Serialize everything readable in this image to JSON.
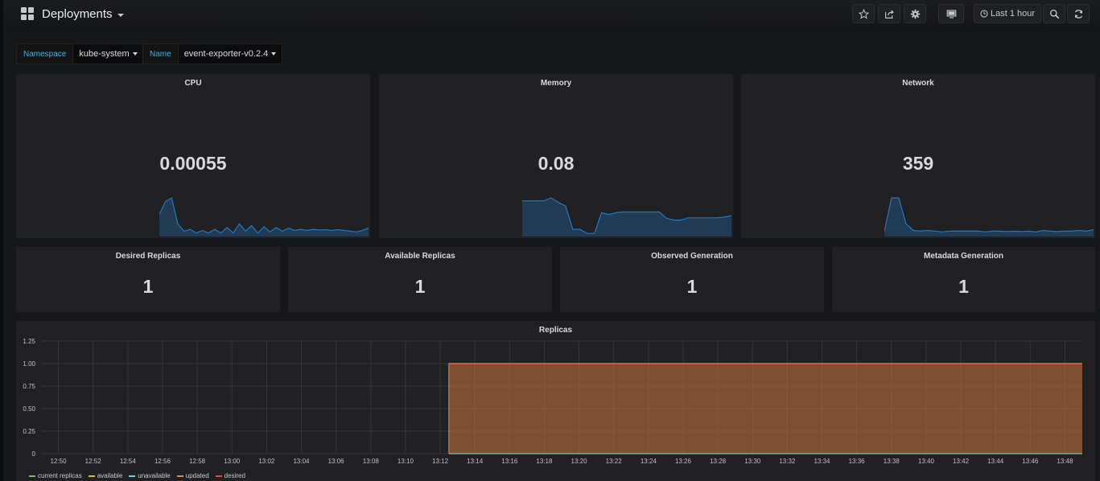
{
  "header": {
    "title": "Deployments",
    "time_range": "Last 1 hour",
    "icons": [
      "star-icon",
      "share-icon",
      "gear-icon",
      "monitor-icon",
      "clock-icon",
      "zoom-out-icon",
      "refresh-icon"
    ]
  },
  "variables": [
    {
      "label": "Namespace",
      "value": "kube-system"
    },
    {
      "label": "Name",
      "value": "event-exporter-v0.2.4"
    }
  ],
  "stats": {
    "cpu": {
      "title": "CPU",
      "value": "0.00055",
      "spark_color": "#1f78c1",
      "spark": [
        0.55,
        0.9,
        1.0,
        0.3,
        0.1,
        0.15,
        0.05,
        0.12,
        0.05,
        0.15,
        0.05,
        0.2,
        0.05,
        0.3,
        0.1,
        0.25,
        0.05,
        0.22,
        0.08,
        0.2,
        0.1,
        0.18,
        0.12,
        0.15,
        0.12,
        0.15,
        0.13,
        0.14,
        0.12,
        0.14,
        0.12,
        0.1,
        0.08,
        0.12,
        0.18
      ]
    },
    "memory": {
      "title": "Memory",
      "value": "0.08",
      "spark_color": "#1f78c1",
      "spark": [
        0.92,
        0.92,
        0.92,
        0.92,
        1.0,
        0.88,
        0.78,
        0.15,
        0.15,
        0.04,
        0.04,
        0.6,
        0.55,
        0.6,
        0.62,
        0.62,
        0.62,
        0.62,
        0.62,
        0.62,
        0.45,
        0.4,
        0.4,
        0.46,
        0.46,
        0.46,
        0.46,
        0.46,
        0.48,
        0.52
      ]
    },
    "network": {
      "title": "Network",
      "value": "359",
      "spark_color": "#1f78c1",
      "spark": [
        0.1,
        1.0,
        1.0,
        0.3,
        0.12,
        0.1,
        0.12,
        0.1,
        0.08,
        0.1,
        0.1,
        0.1,
        0.1,
        0.1,
        0.08,
        0.1,
        0.1,
        0.09,
        0.1,
        0.09,
        0.1,
        0.08,
        0.12,
        0.1,
        0.09,
        0.1,
        0.1,
        0.12,
        0.1,
        0.14
      ]
    },
    "desired_replicas": {
      "title": "Desired Replicas",
      "value": "1"
    },
    "available_replicas": {
      "title": "Available Replicas",
      "value": "1"
    },
    "observed_generation": {
      "title": "Observed Generation",
      "value": "1"
    },
    "metadata_generation": {
      "title": "Metadata Generation",
      "value": "1"
    }
  },
  "replicas_panel": {
    "title": "Replicas",
    "legend": [
      {
        "name": "current replicas",
        "color": "#7eb26d"
      },
      {
        "name": "available",
        "color": "#eab839"
      },
      {
        "name": "unavailable",
        "color": "#6ed0e0"
      },
      {
        "name": "updated",
        "color": "#ef843c"
      },
      {
        "name": "desired",
        "color": "#e24d42"
      }
    ]
  },
  "chart_data": {
    "type": "area",
    "title": "Replicas",
    "xlabel": "",
    "ylabel": "",
    "ylim": [
      0,
      1.25
    ],
    "y_ticks": [
      "0",
      "0.25",
      "0.50",
      "0.75",
      "1.00",
      "1.25"
    ],
    "x_ticks": [
      "12:50",
      "12:52",
      "12:54",
      "12:56",
      "12:58",
      "13:00",
      "13:02",
      "13:04",
      "13:06",
      "13:08",
      "13:10",
      "13:12",
      "13:14",
      "13:16",
      "13:18",
      "13:20",
      "13:22",
      "13:24",
      "13:26",
      "13:28",
      "13:30",
      "13:32",
      "13:34",
      "13:36",
      "13:38",
      "13:40",
      "13:42",
      "13:44",
      "13:46",
      "13:48"
    ],
    "x_range": [
      "12:49",
      "13:49"
    ],
    "series": [
      {
        "name": "current replicas",
        "x": [
          "13:12.5",
          "13:49"
        ],
        "values": [
          1,
          1
        ]
      },
      {
        "name": "available",
        "x": [
          "13:12.5",
          "13:49"
        ],
        "values": [
          1,
          1
        ]
      },
      {
        "name": "unavailable",
        "x": [
          "13:12.5",
          "13:49"
        ],
        "values": [
          0,
          0
        ]
      },
      {
        "name": "updated",
        "x": [
          "13:12.5",
          "13:49"
        ],
        "values": [
          1,
          1
        ]
      },
      {
        "name": "desired",
        "x": [
          "13:12.5",
          "13:49"
        ],
        "values": [
          1,
          1
        ]
      }
    ],
    "grid": true,
    "legend_position": "bottom-left"
  }
}
